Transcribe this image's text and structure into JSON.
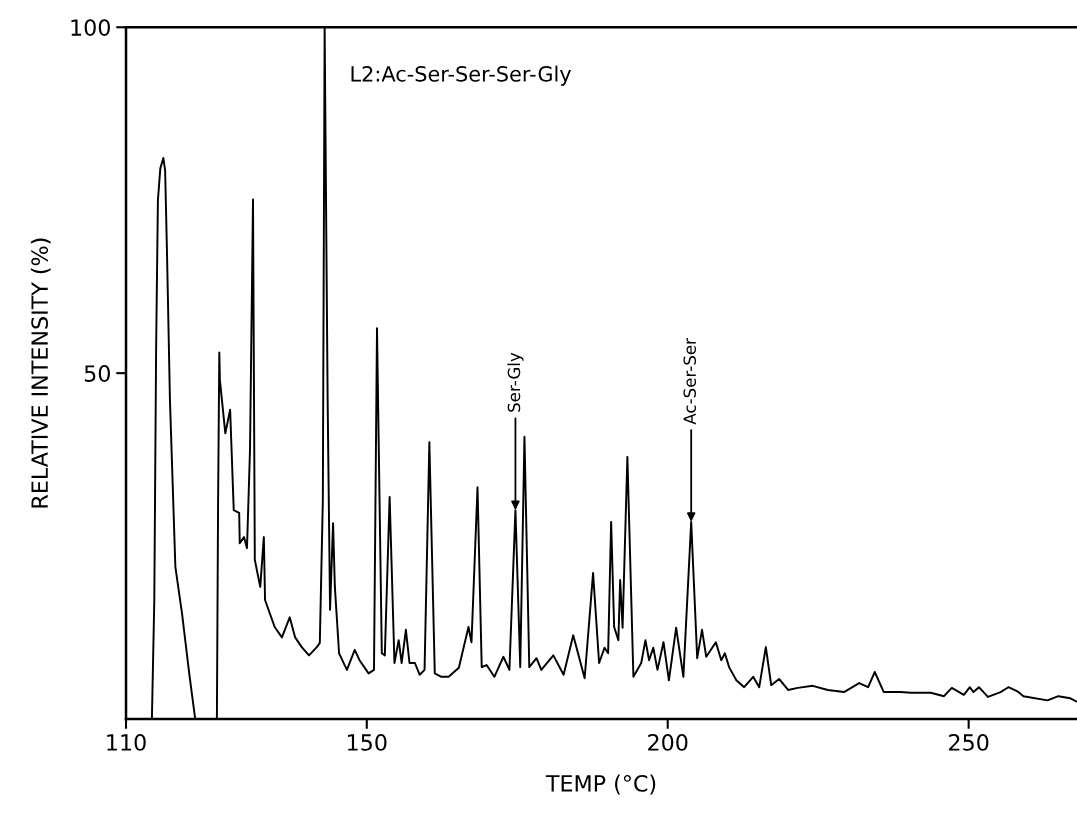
{
  "chart_data": {
    "type": "line",
    "xlabel": "TEMP (°C)",
    "ylabel": "RELATIVE INTENSITY (%)",
    "xlim": [
      110,
      268
    ],
    "ylim": [
      0,
      100
    ],
    "xticks": [
      110,
      150,
      200,
      250
    ],
    "yticks": [
      50,
      100
    ],
    "annotations": [
      "L2:Ac-Ser-Ser-Ser-Gly",
      {
        "text": "Ser-Gly",
        "x": 174.7,
        "y": 30.2
      },
      {
        "text": "Ac-Ser-Ser",
        "x": 203.9,
        "y": 28.5
      }
    ],
    "series": [
      {
        "color": "#000000",
        "x": [
          114.3,
          114.7,
          115.0,
          115.3,
          115.7,
          116.2,
          116.5,
          116.8,
          117.3,
          118.2,
          119.3,
          120.5,
          121.5,
          123.3,
          125.1,
          125.3,
          125.5,
          125.6,
          126.5,
          127.3,
          127.9,
          128.8,
          128.9,
          129.6,
          130.1,
          130.6,
          131.1,
          131.4,
          132.3,
          132.9,
          133.1,
          134.7,
          135.9,
          137.2,
          138.1,
          139.2,
          140.4,
          141.7,
          142.2,
          142.7,
          143.0,
          143.5,
          143.9,
          144.4,
          144.7,
          145.4,
          146.7,
          148.0,
          148.8,
          150.3,
          151.2,
          151.7,
          152.5,
          153.0,
          153.8,
          154.6,
          155.3,
          155.8,
          156.5,
          157.1,
          158.0,
          158.8,
          159.6,
          160.4,
          161.3,
          162.4,
          163.6,
          165.3,
          166.9,
          167.4,
          168.4,
          169.1,
          169.9,
          171.2,
          172.7,
          173.7,
          174.7,
          175.5,
          176.2,
          177.0,
          178.2,
          179.0,
          181.0,
          182.7,
          184.3,
          186.2,
          187.6,
          188.6,
          189.5,
          190.1,
          190.6,
          191.1,
          191.8,
          192.1,
          192.5,
          193.3,
          194.3,
          195.6,
          196.3,
          196.9,
          197.6,
          198.3,
          199.3,
          200.2,
          201.4,
          202.6,
          203.9,
          204.9,
          205.7,
          206.4,
          208.0,
          208.9,
          209.5,
          210.2,
          211.4,
          212.7,
          214.2,
          215.2,
          216.3,
          217.2,
          218.5,
          220.0,
          221.6,
          224.1,
          226.6,
          229.3,
          231.8,
          233.3,
          234.4,
          235.9,
          238.7,
          240.4,
          243.7,
          245.9,
          247.2,
          249.2,
          250.2,
          250.8,
          251.7,
          253.2,
          255.3,
          256.6,
          258.1,
          259.1,
          263.1,
          264.9,
          266.9,
          268.0
        ],
        "values": [
          0,
          17.2,
          53.3,
          75.0,
          79.6,
          81.1,
          79.3,
          67.8,
          46.1,
          22.0,
          15.3,
          6.6,
          0,
          null,
          0,
          31.6,
          53.0,
          49.0,
          41.3,
          44.7,
          30.2,
          29.8,
          25.4,
          26.3,
          24.7,
          38.9,
          75.1,
          23.0,
          19.1,
          26.3,
          17.2,
          13.3,
          11.8,
          14.7,
          11.8,
          10.4,
          9.2,
          10.4,
          11.0,
          31.6,
          100.0,
          46.1,
          15.8,
          28.3,
          19.1,
          9.5,
          7.1,
          10.0,
          8.5,
          6.6,
          7.1,
          56.5,
          9.5,
          9.2,
          32.1,
          8.1,
          11.4,
          8.1,
          12.9,
          8.1,
          8.1,
          6.4,
          7.1,
          40.0,
          6.6,
          6.1,
          6.1,
          7.4,
          13.3,
          11.1,
          33.5,
          7.5,
          7.8,
          6.1,
          9.0,
          7.1,
          30.2,
          7.5,
          40.8,
          7.5,
          8.8,
          7.1,
          9.2,
          6.4,
          12.1,
          5.9,
          21.1,
          8.1,
          10.3,
          9.5,
          28.5,
          13.3,
          11.4,
          20.1,
          13.2,
          37.9,
          6.1,
          8.1,
          11.4,
          8.5,
          10.3,
          7.1,
          11.1,
          5.6,
          13.2,
          6.1,
          28.5,
          8.8,
          12.9,
          9.0,
          11.1,
          8.5,
          9.5,
          7.5,
          5.6,
          4.6,
          6.1,
          4.6,
          10.4,
          4.9,
          5.8,
          4.2,
          4.5,
          4.8,
          4.2,
          3.9,
          5.2,
          4.6,
          6.8,
          3.9,
          3.9,
          3.8,
          3.8,
          3.3,
          4.5,
          3.5,
          4.6,
          3.9,
          4.6,
          3.2,
          3.9,
          4.6,
          4.0,
          3.3,
          2.7,
          3.3,
          3.0,
          2.5
        ]
      }
    ]
  }
}
